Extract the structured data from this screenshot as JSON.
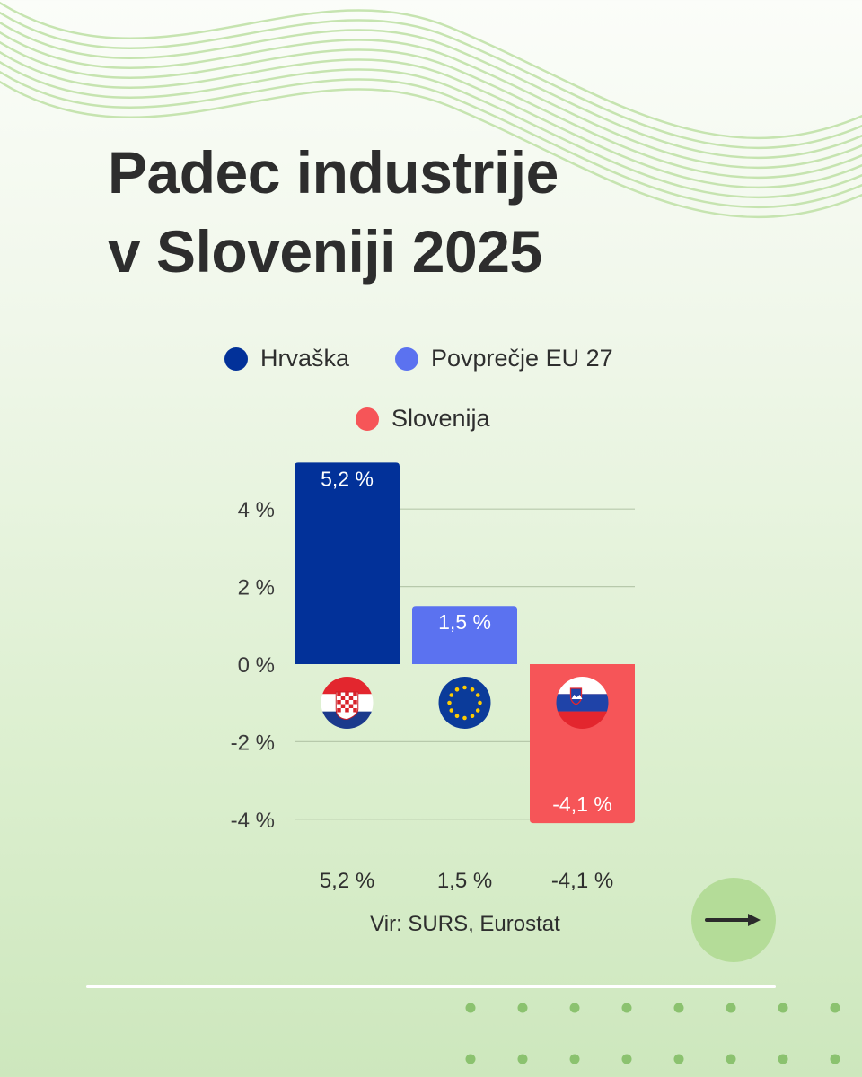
{
  "title": {
    "line1": "Padec industrije",
    "line2": "v Sloveniji 2025"
  },
  "legend": [
    {
      "label": "Hrvaška",
      "color": "#023199"
    },
    {
      "label": "Povprečje EU 27",
      "color": "#5b72f0"
    },
    {
      "label": "Slovenija",
      "color": "#f65558"
    }
  ],
  "chart_data": {
    "type": "bar",
    "categories": [
      "5,2 %",
      "1,5 %",
      "-4,1 %"
    ],
    "values": [
      5.2,
      1.5,
      -4.1
    ],
    "data_labels": [
      "5,2 %",
      "1,5 %",
      "-4,1 %"
    ],
    "colors": [
      "#023199",
      "#5b72f0",
      "#f65558"
    ],
    "flags": [
      "croatia-flag",
      "eu-flag",
      "slovenia-flag"
    ],
    "y_ticks": [
      4,
      2,
      0,
      -2,
      -4
    ],
    "y_tick_labels": [
      "4 %",
      "2 %",
      "0 %",
      "-2 %",
      "-4 %"
    ],
    "ylim": [
      -4.1,
      5.2
    ],
    "grid": true,
    "legend_position": "top"
  },
  "source": "Vir: SURS, Eurostat",
  "next_icon": "arrow-right-icon"
}
